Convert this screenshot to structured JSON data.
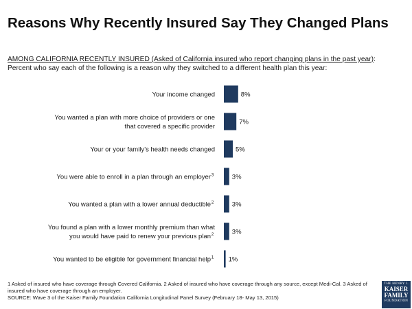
{
  "title": "Reasons Why Recently Insured Say They Changed Plans",
  "subtitle": {
    "underlined": "AMONG CALIFORNIA RECENTLY INSURED (Asked of California insured who report changing plans in the past year)",
    "after_underline": ":",
    "line2": "Percent who say each of the following is a reason why they switched to a different health plan this year:"
  },
  "chart_data": {
    "type": "bar",
    "orientation": "horizontal",
    "categories": [
      {
        "lines": [
          "Your income changed"
        ],
        "sup": ""
      },
      {
        "lines": [
          "You wanted a plan with more choice of providers or one",
          "that covered a specific provider"
        ],
        "sup": ""
      },
      {
        "lines": [
          "Your or your family’s health needs changed"
        ],
        "sup": ""
      },
      {
        "lines": [
          "You were able to enroll in a plan through an employer"
        ],
        "sup": "3"
      },
      {
        "lines": [
          "You wanted a plan with a lower annual deductible"
        ],
        "sup": "2"
      },
      {
        "lines": [
          "You found a plan with a lower monthly premium than what",
          "you would have paid to renew your previous plan"
        ],
        "sup": "2"
      },
      {
        "lines": [
          "You wanted to be eligible for government financial help"
        ],
        "sup": "1"
      }
    ],
    "values": [
      8,
      7,
      5,
      3,
      3,
      3,
      1
    ],
    "value_labels": [
      "8%",
      "7%",
      "5%",
      "3%",
      "3%",
      "3%",
      "1%"
    ],
    "bar_color": "#1f3a5f",
    "xlim": [
      0,
      100
    ],
    "grid": false,
    "legend": "none"
  },
  "footnotes": {
    "line1": "1 Asked of insured who have coverage through Covered California.  2 Asked of insured who have coverage through any source, except Medi-Cal. 3 Asked of insured who have coverage through an employer.",
    "source": "SOURCE: Wave 3 of the Kaiser Family Foundation California Longitudinal Panel Survey (February 18- May 13, 2015)"
  },
  "logo": {
    "line1": "THE HENRY J.",
    "line2a": "KAISER",
    "line2b": "FAMILY",
    "line3": "FOUNDATION"
  }
}
